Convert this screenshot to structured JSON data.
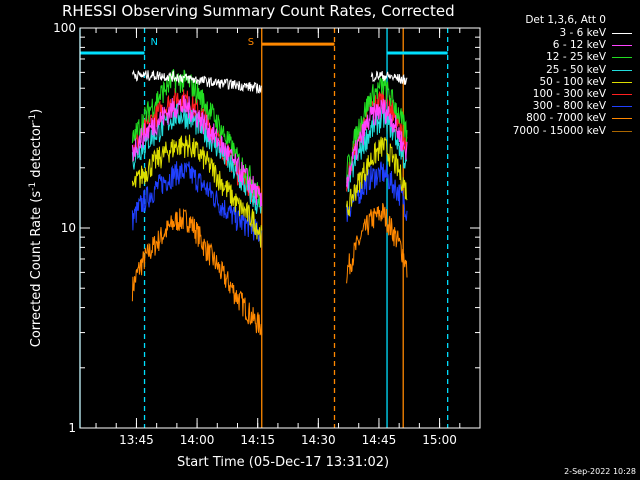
{
  "chart_data": {
    "type": "line",
    "title": "RHESSI Observing Summary Count Rates, Corrected",
    "xlabel": "Start Time (05-Dec-17 13:31:02)",
    "ylabel_main": "Corrected Count Rate (s",
    "ylabel_sup1": "-1",
    "ylabel_mid": " detector",
    "ylabel_sup2": "-1",
    "ylabel_end": ")",
    "y_scale": "log",
    "ylim": [
      1,
      100
    ],
    "xlim": [
      "13:31:02",
      "15:10:00"
    ],
    "y_ticks": [
      "1",
      "10",
      "100"
    ],
    "x_ticks": [
      "13:45",
      "14:00",
      "14:15",
      "14:30",
      "14:45",
      "15:00"
    ],
    "legend_title": "Det 1,3,6, Att 0",
    "legend_position": "top-right",
    "series": [
      {
        "name": "3 - 6 keV",
        "color": "#ffffff",
        "segments": [
          {
            "x": [
              "13:44",
              "13:45",
              "13:50",
              "13:55",
              "14:00",
              "14:05",
              "14:10",
              "14:15",
              "14:16"
            ],
            "y": [
              60,
              58,
              58,
              57,
              55,
              53,
              52,
              50,
              50
            ]
          },
          {
            "x": [
              "14:43",
              "14:45",
              "14:48",
              "14:51",
              "14:52"
            ],
            "y": [
              57,
              58,
              57,
              55,
              55
            ]
          }
        ]
      },
      {
        "name": "6 - 12 keV",
        "color": "#ff44ff",
        "segments": [
          {
            "x": [
              "13:44",
              "13:46",
              "13:50",
              "13:55",
              "13:58",
              "14:02",
              "14:06",
              "14:10",
              "14:14",
              "14:16"
            ],
            "y": [
              24,
              28,
              34,
              41,
              40,
              33,
              26,
              20,
              16,
              13
            ]
          },
          {
            "x": [
              "14:37",
              "14:43",
              "14:46",
              "14:48",
              "14:51",
              "14:52"
            ],
            "y": [
              17,
              36,
              40,
              36,
              26,
              24
            ]
          }
        ]
      },
      {
        "name": "12 - 25 keV",
        "color": "#22dd22",
        "segments": [
          {
            "x": [
              "13:44",
              "13:46",
              "13:50",
              "13:54",
              "13:58",
              "14:02",
              "14:06",
              "14:10",
              "14:14",
              "14:16"
            ],
            "y": [
              27,
              33,
              44,
              55,
              54,
              42,
              31,
              22,
              17,
              13
            ]
          },
          {
            "x": [
              "14:37",
              "14:43",
              "14:46",
              "14:48",
              "14:51",
              "14:52"
            ],
            "y": [
              19,
              45,
              52,
              45,
              33,
              29
            ]
          }
        ]
      },
      {
        "name": "25 - 50 keV",
        "color": "#22dddd",
        "segments": [
          {
            "x": [
              "13:44",
              "13:46",
              "13:50",
              "13:55",
              "13:58",
              "14:02",
              "14:06",
              "14:10",
              "14:14",
              "14:16"
            ],
            "y": [
              22,
              25,
              30,
              37,
              36,
              30,
              24,
              18,
              14,
              12
            ]
          },
          {
            "x": [
              "14:37",
              "14:43",
              "14:46",
              "14:48",
              "14:51",
              "14:52"
            ],
            "y": [
              16,
              31,
              36,
              32,
              23,
              20
            ]
          }
        ]
      },
      {
        "name": "50 - 100 keV",
        "color": "#dddd00",
        "segments": [
          {
            "x": [
              "13:44",
              "13:46",
              "13:50",
              "13:55",
              "13:58",
              "14:02",
              "14:06",
              "14:10",
              "14:14",
              "14:16"
            ],
            "y": [
              16,
              18,
              22,
              26,
              26,
              22,
              17,
              13,
              11,
              9
            ]
          },
          {
            "x": [
              "14:37",
              "14:43",
              "14:46",
              "14:48",
              "14:51",
              "14:52"
            ],
            "y": [
              12,
              22,
              26,
              23,
              17,
              15
            ]
          }
        ]
      },
      {
        "name": "100 - 300 keV",
        "color": "#ff2020",
        "segments": [
          {
            "x": [
              "13:44",
              "13:46",
              "13:50",
              "13:55",
              "13:58",
              "14:02",
              "14:06",
              "14:10",
              "14:14",
              "14:16"
            ],
            "y": [
              24,
              29,
              37,
              45,
              43,
              35,
              26,
              19,
              15,
              14
            ]
          },
          {
            "x": [
              "14:37",
              "14:43",
              "14:46",
              "14:48",
              "14:51",
              "14:52"
            ],
            "y": [
              17,
              40,
              45,
              40,
              28,
              25
            ]
          }
        ]
      },
      {
        "name": "300 - 800 keV",
        "color": "#2040ff",
        "segments": [
          {
            "x": [
              "13:44",
              "13:46",
              "13:50",
              "13:55",
              "13:58",
              "14:02",
              "14:06",
              "14:10",
              "14:14",
              "14:16"
            ],
            "y": [
              11,
              13,
              16,
              19,
              19,
              16,
              13,
              11,
              10,
              9
            ]
          },
          {
            "x": [
              "14:37",
              "14:43",
              "14:46",
              "14:48",
              "14:51",
              "14:52"
            ],
            "y": [
              12,
              18,
              19,
              17,
              14,
              12
            ]
          }
        ]
      },
      {
        "name": "800 - 7000 keV",
        "color": "#ff8800",
        "segments": [
          {
            "x": [
              "13:44",
              "13:46",
              "13:50",
              "13:55",
              "13:58",
              "14:02",
              "14:06",
              "14:10",
              "14:14",
              "14:16"
            ],
            "y": [
              5,
              6.5,
              8.5,
              11,
              11,
              8,
              6,
              4.5,
              3.5,
              3.2
            ]
          },
          {
            "x": [
              "14:37",
              "14:43",
              "14:46",
              "14:48",
              "14:51",
              "14:52"
            ],
            "y": [
              6,
              11,
              12,
              10,
              7.5,
              6
            ]
          }
        ]
      },
      {
        "name": "7000 - 15000 keV",
        "color": "#aa6600",
        "segments": []
      }
    ],
    "annotations": [
      {
        "text": "N",
        "color": "#00e0ff",
        "x": "13:47"
      },
      {
        "text": "S",
        "color": "#ff8800",
        "x": "14:16"
      }
    ],
    "flag_bars": [
      {
        "color": "#00e0ff",
        "x": [
          "13:31:02",
          "13:47"
        ],
        "y": 75
      },
      {
        "color": "#00e0ff",
        "x": [
          "14:47",
          "15:02"
        ],
        "y": 75
      },
      {
        "color": "#ff8800",
        "x": [
          "14:16",
          "14:34"
        ],
        "y": 83
      }
    ],
    "vertical_lines": [
      {
        "x": "13:31:02",
        "color": "#00e0ff",
        "style": "solid"
      },
      {
        "x": "13:47",
        "color": "#00e0ff",
        "style": "dashed"
      },
      {
        "x": "14:16",
        "color": "#ff8800",
        "style": "solid"
      },
      {
        "x": "14:34",
        "color": "#ff8800",
        "style": "dashed"
      },
      {
        "x": "14:47",
        "color": "#00e0ff",
        "style": "solid"
      },
      {
        "x": "14:51",
        "color": "#ff8800",
        "style": "solid"
      },
      {
        "x": "15:02",
        "color": "#00e0ff",
        "style": "dashed"
      }
    ],
    "grid": false
  },
  "footer_timestamp": "2-Sep-2022 10:28"
}
